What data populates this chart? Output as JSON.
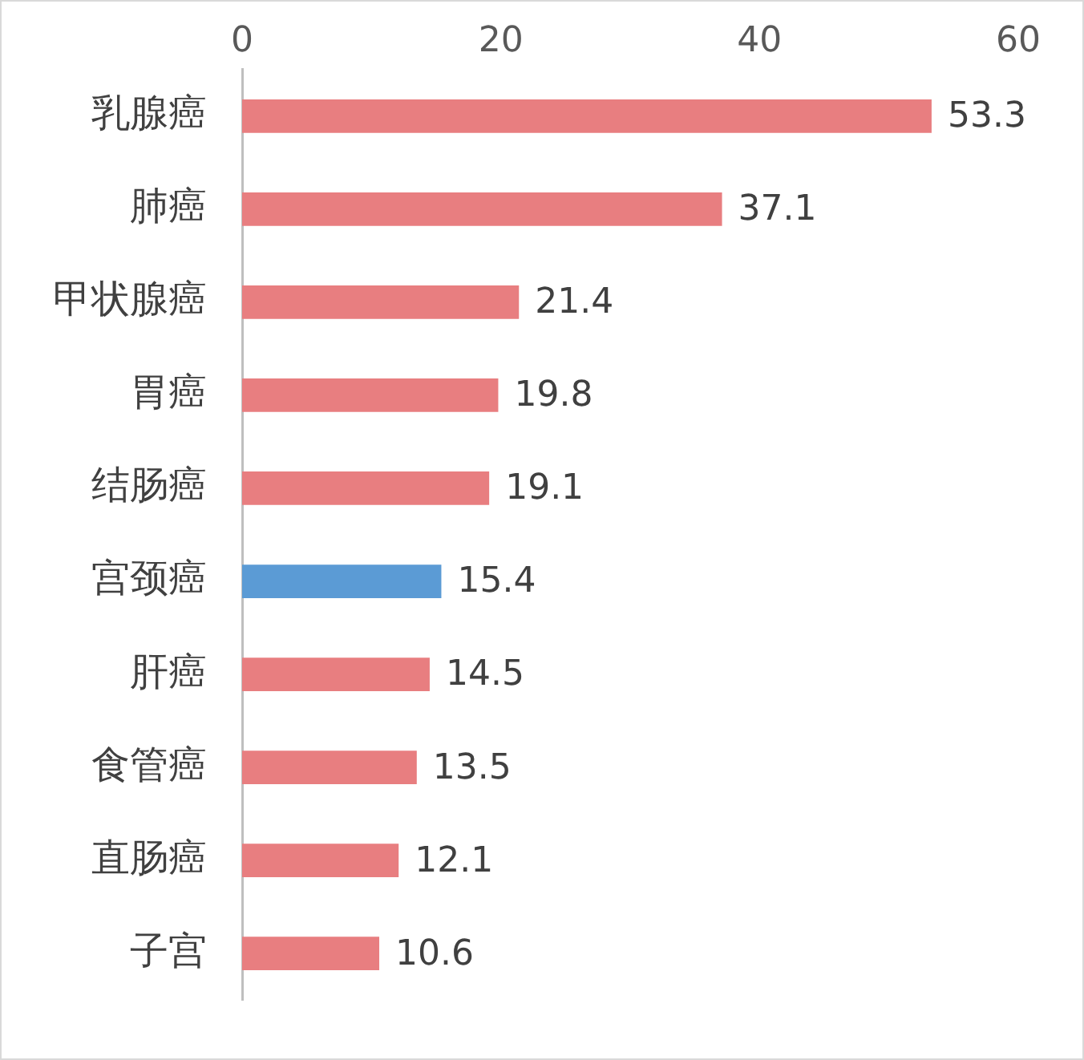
{
  "chart_data": {
    "type": "bar",
    "orientation": "horizontal",
    "categories": [
      "乳腺癌",
      "肺癌",
      "甲状腺癌",
      "胃癌",
      "结肠癌",
      "宫颈癌",
      "肝癌",
      "食管癌",
      "直肠癌",
      "子宫"
    ],
    "values": [
      53.3,
      37.1,
      21.4,
      19.8,
      19.1,
      15.4,
      14.5,
      13.5,
      12.1,
      10.6
    ],
    "colors": [
      "#e87e80",
      "#e87e80",
      "#e87e80",
      "#e87e80",
      "#e87e80",
      "#5b9bd5",
      "#e87e80",
      "#e87e80",
      "#e87e80",
      "#e87e80"
    ],
    "xlim": [
      0,
      60
    ],
    "xticks": [
      0,
      20,
      40,
      60
    ],
    "data_labels": true,
    "grid": false,
    "legend": false
  }
}
